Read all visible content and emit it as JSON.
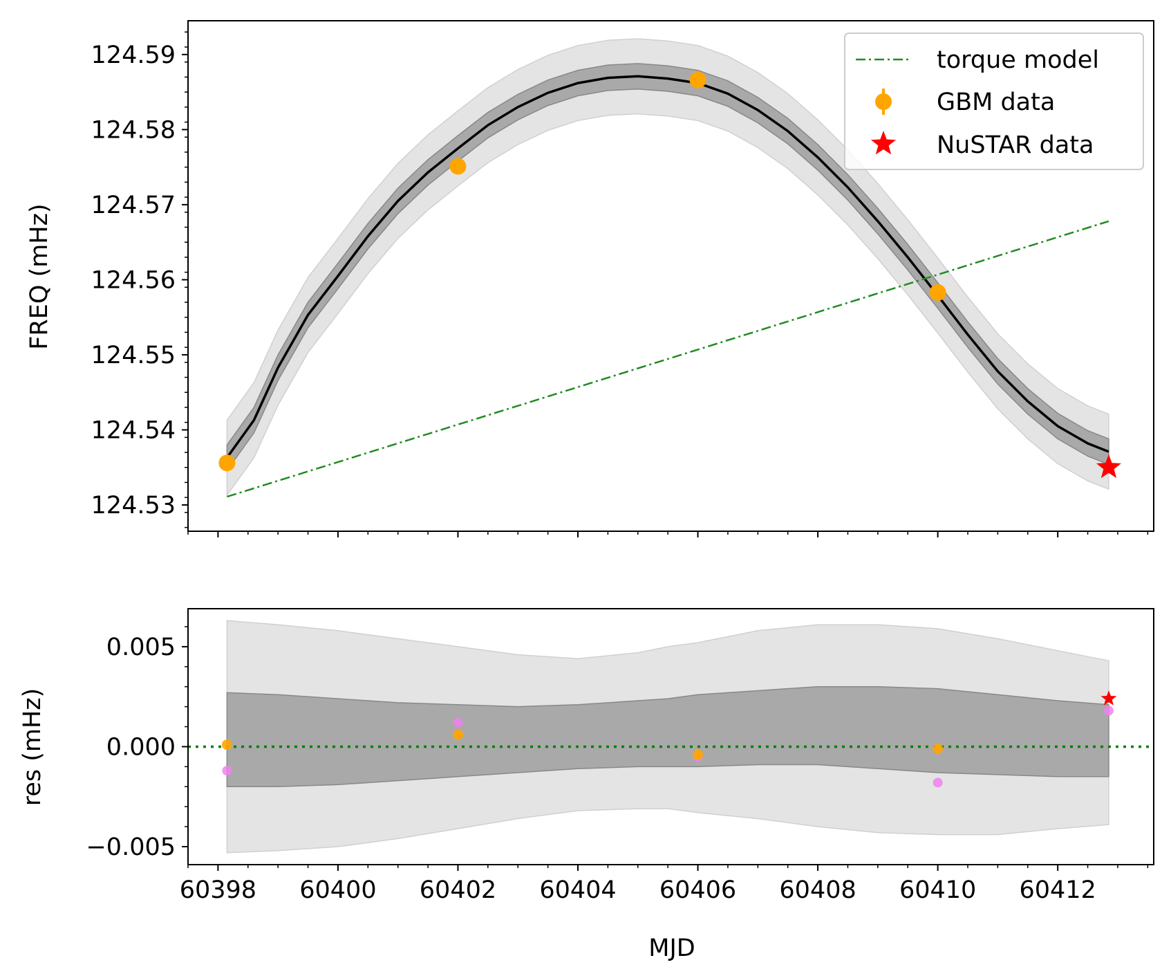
{
  "chart_data": [
    {
      "type": "line",
      "panel": "top",
      "xlabel": "",
      "ylabel": "FREQ (mHz)",
      "xlim": [
        60397.5,
        60413.6
      ],
      "ylim": [
        124.5265,
        124.5945
      ],
      "yticks": [
        124.53,
        124.54,
        124.55,
        124.56,
        124.57,
        124.58,
        124.59
      ],
      "ytick_labels": [
        "124.53",
        "124.54",
        "124.55",
        "124.56",
        "124.57",
        "124.58",
        "124.59"
      ],
      "legend": {
        "position": "top-right",
        "entries": [
          {
            "label": "torque model",
            "marker": "dash-dot line"
          },
          {
            "label": "GBM data",
            "marker": "circle with errorbar"
          },
          {
            "label": "NuSTAR data",
            "marker": "star"
          }
        ]
      },
      "colors": {
        "model_line": "#000000",
        "band_inner": "#a9a9a9",
        "band_outer": "#e4e4e4",
        "torque": "#228b22",
        "gbm": "#ffa500",
        "nustar": "#ff0000"
      },
      "series": [
        {
          "name": "",
          "kind": "model curve",
          "x": [
            60398.15,
            60398.6,
            60399.0,
            60399.5,
            60400.0,
            60400.5,
            60401.0,
            60401.5,
            60402.0,
            60402.5,
            60403.0,
            60403.5,
            60404.0,
            60404.5,
            60405.0,
            60405.5,
            60406.0,
            60406.5,
            60407.0,
            60407.5,
            60408.0,
            60408.5,
            60409.0,
            60409.5,
            60410.0,
            60410.5,
            60411.0,
            60411.5,
            60412.0,
            60412.5,
            60412.85
          ],
          "y": [
            124.5363,
            124.5413,
            124.5483,
            124.5553,
            124.5605,
            124.5658,
            124.5705,
            124.5743,
            124.5775,
            124.5806,
            124.583,
            124.5849,
            124.5862,
            124.5869,
            124.5871,
            124.5868,
            124.5862,
            124.5848,
            124.5826,
            124.5798,
            124.5763,
            124.5723,
            124.5678,
            124.563,
            124.5579,
            124.5527,
            124.5478,
            124.5438,
            124.5405,
            124.5382,
            124.5371
          ],
          "band_1sigma": 0.0017,
          "band_2sigma": 0.005
        },
        {
          "name": "torque model",
          "kind": "linear",
          "x": [
            60398.15,
            60412.85
          ],
          "y": [
            124.5311,
            124.5678
          ]
        },
        {
          "name": "GBM data",
          "kind": "points",
          "x": [
            60398.15,
            60402.0,
            60406.0,
            60410.0
          ],
          "y": [
            124.5356,
            124.5751,
            124.5866,
            124.5583
          ]
        },
        {
          "name": "NuSTAR data",
          "kind": "points",
          "x": [
            60412.85
          ],
          "y": [
            124.535
          ]
        }
      ]
    },
    {
      "type": "scatter",
      "panel": "bottom",
      "xlabel": "MJD",
      "ylabel": "res (mHz)",
      "xlim": [
        60397.5,
        60413.6
      ],
      "ylim": [
        -0.0059,
        0.0069
      ],
      "xticks": [
        60398,
        60400,
        60402,
        60404,
        60406,
        60408,
        60410,
        60412
      ],
      "xtick_labels": [
        "60398",
        "60400",
        "60402",
        "60404",
        "60406",
        "60408",
        "60410",
        "60412"
      ],
      "yticks": [
        -0.005,
        0.0,
        0.005
      ],
      "ytick_labels": [
        "−0.005",
        "0.000",
        "0.005"
      ],
      "zero_line": {
        "y": 0,
        "style": "dotted",
        "color": "#008000"
      },
      "colors": {
        "band_inner": "#a9a9a9",
        "band_outer": "#e4e4e4",
        "gbm": "#ffa500",
        "nustar": "#ff0000",
        "alt": "#ee82ee"
      },
      "bands": {
        "x": [
          60398.15,
          60399.0,
          60400.0,
          60401.0,
          60402.0,
          60403.0,
          60404.0,
          60405.0,
          60405.5,
          60406.0,
          60407.0,
          60408.0,
          60409.0,
          60410.0,
          60411.0,
          60412.0,
          60412.85
        ],
        "inner_upper": [
          0.0027,
          0.0026,
          0.0024,
          0.0022,
          0.0021,
          0.002,
          0.0021,
          0.0023,
          0.0024,
          0.0026,
          0.0028,
          0.003,
          0.003,
          0.0029,
          0.0026,
          0.0023,
          0.0021
        ],
        "inner_lower": [
          -0.002,
          -0.002,
          -0.0019,
          -0.0017,
          -0.0015,
          -0.0013,
          -0.0011,
          -0.001,
          -0.001,
          -0.001,
          -0.0009,
          -0.0009,
          -0.0011,
          -0.0013,
          -0.0014,
          -0.0015,
          -0.0015
        ],
        "outer_upper": [
          0.0063,
          0.0061,
          0.0058,
          0.0054,
          0.005,
          0.0046,
          0.0044,
          0.0047,
          0.005,
          0.0052,
          0.0058,
          0.0061,
          0.0061,
          0.0059,
          0.0054,
          0.0048,
          0.0043
        ],
        "outer_lower": [
          -0.0053,
          -0.0052,
          -0.005,
          -0.0046,
          -0.0041,
          -0.0036,
          -0.0032,
          -0.0031,
          -0.0031,
          -0.0033,
          -0.0036,
          -0.004,
          -0.0043,
          -0.0044,
          -0.0044,
          -0.0041,
          -0.0039
        ]
      },
      "series": [
        {
          "name": "GBM data",
          "x": [
            60398.15,
            60402.0,
            60406.0,
            60410.0
          ],
          "y": [
            0.0001,
            0.0006,
            -0.0004,
            -0.0001
          ]
        },
        {
          "name": "",
          "x": [
            60398.15,
            60402.0,
            60406.0,
            60410.0,
            60412.85
          ],
          "y": [
            -0.0012,
            0.0012,
            -0.0005,
            -0.0018,
            0.0018
          ]
        },
        {
          "name": "NuSTAR data",
          "x": [
            60412.85
          ],
          "y": [
            0.0024
          ]
        }
      ]
    }
  ]
}
